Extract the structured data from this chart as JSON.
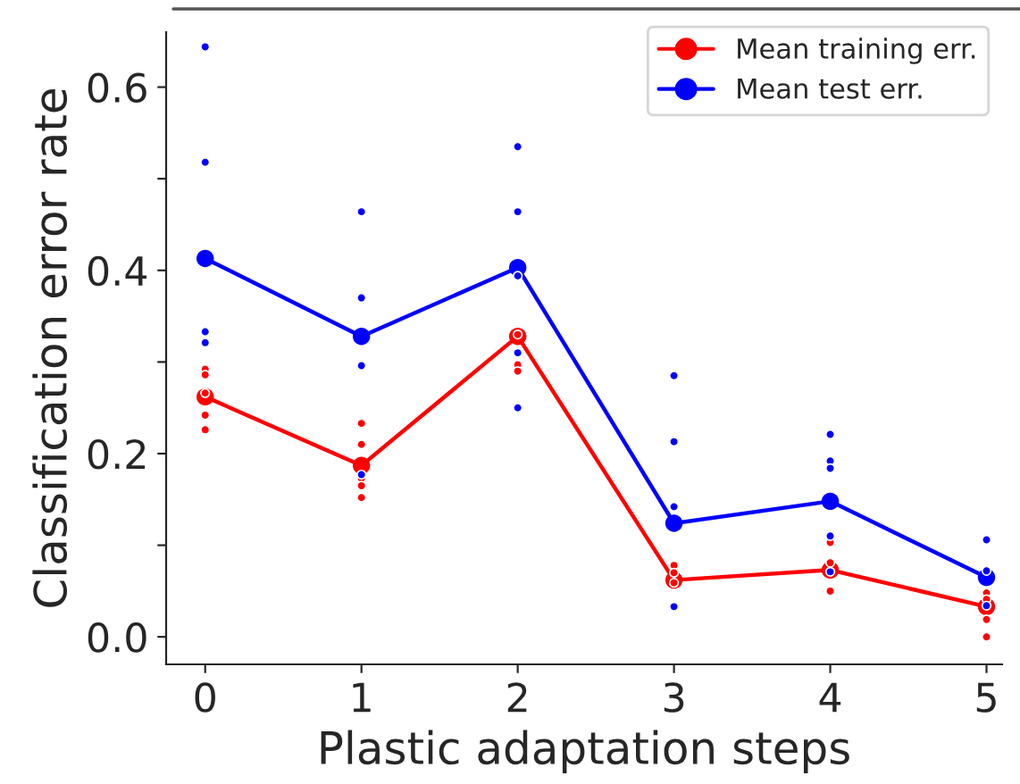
{
  "chart_data": {
    "type": "line",
    "xlabel": "Plastic adaptation steps",
    "ylabel": "Classification error rate",
    "xlim": [
      -0.25,
      5.1
    ],
    "xticks": [
      0,
      1,
      2,
      3,
      4,
      5
    ],
    "ylim": [
      -0.03,
      0.66
    ],
    "yticks": [
      {
        "value": 0,
        "label": "0.0"
      },
      {
        "value": 0.1,
        "label": null
      },
      {
        "value": 0.2,
        "label": "0.2"
      },
      {
        "value": 0.3,
        "label": null
      },
      {
        "value": 0.4,
        "label": "0.4"
      },
      {
        "value": 0.5,
        "label": null
      },
      {
        "value": 0.6,
        "label": "0.6"
      }
    ],
    "grid": false,
    "legend": "top right",
    "marker": "circle",
    "line_style": "solid",
    "series": [
      {
        "type": "scatter",
        "color": "#ff0000",
        "x": [
          0,
          0,
          0,
          0,
          0,
          1,
          1,
          1,
          1,
          1,
          2,
          2,
          2,
          3,
          3,
          3,
          4,
          4,
          4,
          5,
          5,
          5,
          5
        ],
        "values": [
          0.292,
          0.286,
          0.266,
          0.242,
          0.226,
          0.233,
          0.21,
          0.173,
          0.165,
          0.152,
          0.33,
          0.297,
          0.29,
          0.078,
          0.07,
          0.059,
          0.103,
          0.081,
          0.05,
          0.048,
          0.041,
          0.019,
          0.0
        ]
      },
      {
        "type": "scatter",
        "color": "#0000ff",
        "x": [
          0,
          0,
          0,
          0,
          1,
          1,
          1,
          1,
          2,
          2,
          2,
          2,
          2,
          3,
          3,
          3,
          3,
          4,
          4,
          4,
          4,
          4,
          5,
          5,
          5
        ],
        "values": [
          0.644,
          0.518,
          0.333,
          0.321,
          0.464,
          0.37,
          0.296,
          0.177,
          0.535,
          0.464,
          0.394,
          0.31,
          0.25,
          0.285,
          0.213,
          0.142,
          0.033,
          0.221,
          0.192,
          0.184,
          0.11,
          0.071,
          0.106,
          0.072,
          0.034
        ]
      },
      {
        "name": "Mean training err.",
        "color": "#ff0000",
        "x": [
          0,
          1,
          2,
          3,
          4,
          5
        ],
        "values": [
          0.262,
          0.187,
          0.328,
          0.062,
          0.073,
          0.033
        ]
      },
      {
        "name": "Mean test err.",
        "color": "#0000ff",
        "x": [
          0,
          1,
          2,
          3,
          4,
          5
        ],
        "values": [
          0.413,
          0.328,
          0.403,
          0.124,
          0.148,
          0.065
        ]
      }
    ]
  }
}
